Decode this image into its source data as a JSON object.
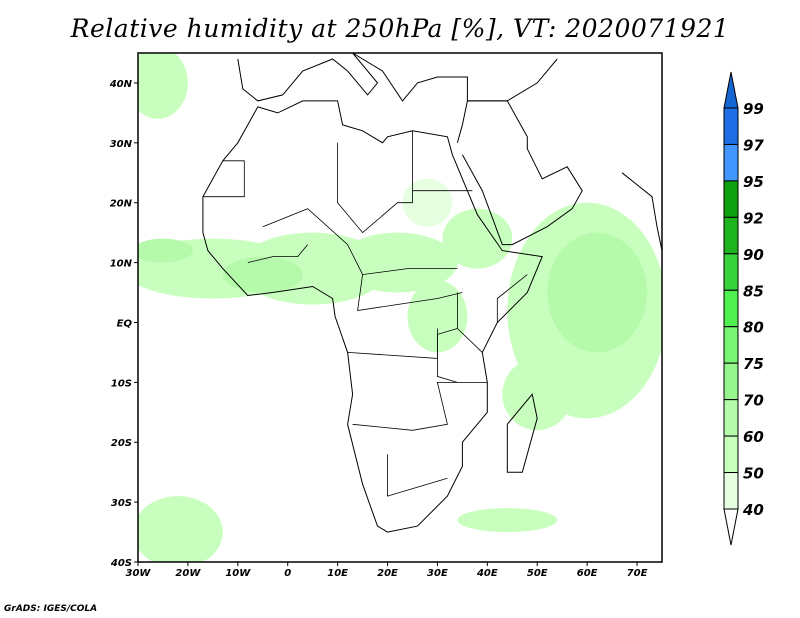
{
  "title": "Relative humidity at 250hPa [%], VT: 2020071921",
  "credit": "GrADS: IGES/COLA",
  "map": {
    "variable": "Relative humidity",
    "level": "250hPa",
    "units": "%",
    "valid_time": "2020071921",
    "lon_range": [
      -30,
      75
    ],
    "lat_range": [
      -40,
      45
    ],
    "x_ticks": [
      "30W",
      "20W",
      "10W",
      "0",
      "10E",
      "20E",
      "30E",
      "40E",
      "50E",
      "60E",
      "70E"
    ],
    "y_ticks": [
      "40N",
      "30N",
      "20N",
      "10N",
      "EQ",
      "10S",
      "20S",
      "30S",
      "40S"
    ]
  },
  "colorbar": {
    "levels": [
      "99",
      "97",
      "95",
      "92",
      "90",
      "85",
      "80",
      "75",
      "70",
      "60",
      "50",
      "40"
    ],
    "colors": [
      "#1464d2",
      "#1e6ee6",
      "#4196ff",
      "#0fa00f",
      "#1eb41e",
      "#37d23c",
      "#50f050",
      "#78f573",
      "#96f58c",
      "#b4faaa",
      "#c8ffbe",
      "#e6ffe1",
      "#ffffff"
    ]
  }
}
